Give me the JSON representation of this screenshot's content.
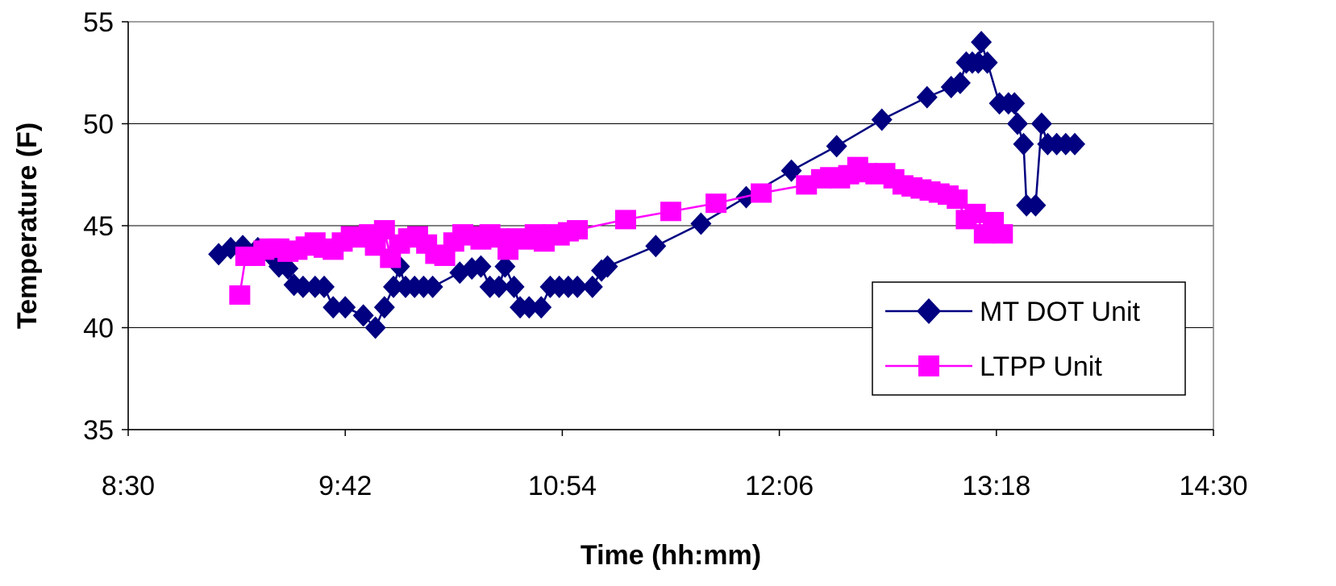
{
  "chart_data": {
    "type": "line",
    "title": "",
    "xlabel": "Time (hh:mm)",
    "ylabel": "Temperature (F)",
    "xlim": [
      "8:30",
      "14:30"
    ],
    "ylim": [
      35,
      55
    ],
    "x_ticks": [
      "8:30",
      "9:42",
      "10:54",
      "12:06",
      "13:18",
      "14:30"
    ],
    "y_ticks": [
      "35",
      "40",
      "45",
      "50",
      "55"
    ],
    "grid": "horizontal",
    "legend_position": "right",
    "colors": {
      "MT DOT Unit": "#000080",
      "LTPP Unit": "#ff00ff"
    },
    "series": [
      {
        "name": "MT DOT Unit",
        "marker": "diamond",
        "points": [
          [
            "9:00",
            43.6
          ],
          [
            "9:04",
            43.9
          ],
          [
            "9:08",
            44.0
          ],
          [
            "9:13",
            43.9
          ],
          [
            "9:17",
            43.6
          ],
          [
            "9:20",
            43.0
          ],
          [
            "9:23",
            42.9
          ],
          [
            "9:25",
            42.1
          ],
          [
            "9:28",
            42.0
          ],
          [
            "9:32",
            42.0
          ],
          [
            "9:35",
            42.0
          ],
          [
            "9:38",
            41.0
          ],
          [
            "9:42",
            41.0
          ],
          [
            "9:48",
            40.6
          ],
          [
            "9:52",
            40.0
          ],
          [
            "9:55",
            41.0
          ],
          [
            "9:58",
            42.0
          ],
          [
            "10:00",
            43.0
          ],
          [
            "10:02",
            42.0
          ],
          [
            "10:05",
            42.0
          ],
          [
            "10:08",
            42.0
          ],
          [
            "10:11",
            42.0
          ],
          [
            "10:20",
            42.7
          ],
          [
            "10:24",
            42.9
          ],
          [
            "10:27",
            43.0
          ],
          [
            "10:30",
            42.0
          ],
          [
            "10:33",
            42.0
          ],
          [
            "10:35",
            43.0
          ],
          [
            "10:38",
            42.0
          ],
          [
            "10:40",
            41.0
          ],
          [
            "10:43",
            41.0
          ],
          [
            "10:47",
            41.0
          ],
          [
            "10:50",
            42.0
          ],
          [
            "10:53",
            42.0
          ],
          [
            "10:56",
            42.0
          ],
          [
            "10:59",
            42.0
          ],
          [
            "11:04",
            42.0
          ],
          [
            "11:07",
            42.8
          ],
          [
            "11:09",
            43.0
          ],
          [
            "11:25",
            44.0
          ],
          [
            "11:40",
            45.1
          ],
          [
            "11:55",
            46.4
          ],
          [
            "12:10",
            47.7
          ],
          [
            "12:25",
            48.9
          ],
          [
            "12:40",
            50.2
          ],
          [
            "12:55",
            51.3
          ],
          [
            "13:03",
            51.8
          ],
          [
            "13:06",
            52.0
          ],
          [
            "13:08",
            53.0
          ],
          [
            "13:10",
            53.0
          ],
          [
            "13:12",
            53.0
          ],
          [
            "13:13",
            54.0
          ],
          [
            "13:15",
            53.0
          ],
          [
            "13:19",
            51.0
          ],
          [
            "13:22",
            51.0
          ],
          [
            "13:24",
            51.0
          ],
          [
            "13:25",
            50.0
          ],
          [
            "13:27",
            49.0
          ],
          [
            "13:28",
            46.0
          ],
          [
            "13:31",
            46.0
          ],
          [
            "13:33",
            50.0
          ],
          [
            "13:35",
            49.0
          ],
          [
            "13:38",
            49.0
          ],
          [
            "13:41",
            49.0
          ],
          [
            "13:44",
            49.0
          ]
        ]
      },
      {
        "name": "LTPP Unit",
        "marker": "square",
        "points": [
          [
            "9:07",
            41.6
          ],
          [
            "9:09",
            43.5
          ],
          [
            "9:12",
            43.5
          ],
          [
            "9:15",
            43.8
          ],
          [
            "9:17",
            43.9
          ],
          [
            "9:20",
            43.9
          ],
          [
            "9:23",
            43.7
          ],
          [
            "9:26",
            43.8
          ],
          [
            "9:29",
            44.0
          ],
          [
            "9:32",
            44.2
          ],
          [
            "9:35",
            43.9
          ],
          [
            "9:38",
            43.8
          ],
          [
            "9:41",
            44.2
          ],
          [
            "9:44",
            44.5
          ],
          [
            "9:47",
            44.4
          ],
          [
            "9:50",
            44.6
          ],
          [
            "9:52",
            44.0
          ],
          [
            "9:55",
            44.8
          ],
          [
            "9:57",
            43.4
          ],
          [
            "10:00",
            44.1
          ],
          [
            "10:03",
            44.4
          ],
          [
            "10:06",
            44.5
          ],
          [
            "10:09",
            44.1
          ],
          [
            "10:12",
            43.6
          ],
          [
            "10:15",
            43.5
          ],
          [
            "10:18",
            44.2
          ],
          [
            "10:21",
            44.6
          ],
          [
            "10:24",
            44.5
          ],
          [
            "10:27",
            44.3
          ],
          [
            "10:30",
            44.6
          ],
          [
            "10:33",
            44.4
          ],
          [
            "10:36",
            43.8
          ],
          [
            "10:39",
            44.4
          ],
          [
            "10:42",
            44.3
          ],
          [
            "10:45",
            44.6
          ],
          [
            "10:48",
            44.2
          ],
          [
            "10:51",
            44.6
          ],
          [
            "10:53",
            44.5
          ],
          [
            "10:56",
            44.7
          ],
          [
            "10:59",
            44.8
          ],
          [
            "11:15",
            45.3
          ],
          [
            "11:30",
            45.7
          ],
          [
            "11:45",
            46.1
          ],
          [
            "12:00",
            46.6
          ],
          [
            "12:15",
            47.0
          ],
          [
            "12:20",
            47.3
          ],
          [
            "12:23",
            47.4
          ],
          [
            "12:26",
            47.3
          ],
          [
            "12:29",
            47.5
          ],
          [
            "12:32",
            47.9
          ],
          [
            "12:35",
            47.6
          ],
          [
            "12:38",
            47.5
          ],
          [
            "12:41",
            47.6
          ],
          [
            "12:44",
            47.3
          ],
          [
            "12:47",
            47.0
          ],
          [
            "12:50",
            46.9
          ],
          [
            "12:53",
            46.8
          ],
          [
            "12:56",
            46.7
          ],
          [
            "12:59",
            46.6
          ],
          [
            "13:02",
            46.5
          ],
          [
            "13:05",
            46.3
          ],
          [
            "13:08",
            45.3
          ],
          [
            "13:11",
            45.6
          ],
          [
            "13:14",
            44.6
          ],
          [
            "13:17",
            45.2
          ],
          [
            "13:20",
            44.6
          ]
        ]
      }
    ]
  }
}
